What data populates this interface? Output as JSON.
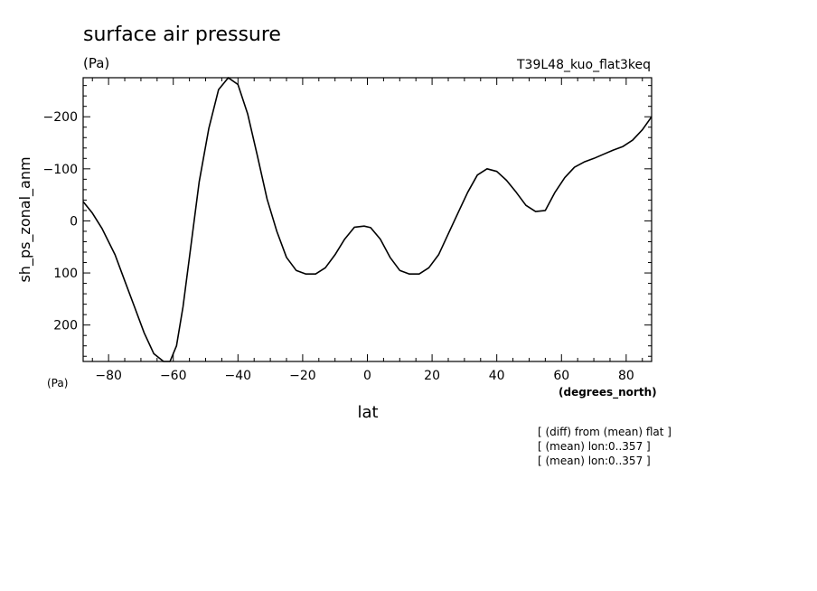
{
  "chart_data": {
    "type": "line",
    "title": "surface air pressure",
    "title_units": "(Pa)",
    "run_label": "T39L48_kuo_flat3keq",
    "ylabel": "sh_ps_zonal_anm",
    "y_units": "(Pa)",
    "xlabel": "lat",
    "x_units": "(degrees_north)",
    "notes": [
      "[ (diff) from (mean) flat ]",
      "[ (mean) lon:0..357 ]",
      "[ (mean) lon:0..357 ]"
    ],
    "xlim": [
      -87.86,
      87.86
    ],
    "ylim": [
      270,
      -275
    ],
    "y_inverted": true,
    "x_ticks": [
      -80,
      -60,
      -40,
      -20,
      0,
      20,
      40,
      60,
      80
    ],
    "x_tick_labels": [
      "−80",
      "−60",
      "−40",
      "−20",
      "0",
      "20",
      "40",
      "60",
      "80"
    ],
    "y_ticks": [
      -200,
      -100,
      0,
      100,
      200
    ],
    "y_tick_labels": [
      "−200",
      "−100",
      "0",
      "100",
      "200"
    ],
    "line_color": "#000000",
    "grid": false,
    "series": [
      {
        "x": [
          -87.86,
          -85,
          -82,
          -78,
          -75,
          -72,
          -69,
          -66,
          -63,
          -61,
          -59,
          -57,
          -55,
          -52,
          -49,
          -46,
          -43,
          -40,
          -37,
          -34,
          -31,
          -28,
          -25,
          -22,
          -19,
          -16,
          -13,
          -10,
          -7,
          -4,
          -1,
          1,
          4,
          7,
          10,
          13,
          16,
          19,
          22,
          25,
          28,
          31,
          34,
          37,
          40,
          43,
          46,
          49,
          52,
          55,
          58,
          61,
          64,
          67,
          70,
          73,
          76,
          79,
          82,
          85,
          87.86
        ],
        "y": [
          -37,
          -15,
          15,
          65,
          115,
          165,
          215,
          255,
          275,
          272,
          240,
          165,
          70,
          -75,
          -178,
          -252,
          -277,
          -262,
          -205,
          -125,
          -42,
          20,
          70,
          95,
          102,
          102,
          90,
          65,
          35,
          12,
          10,
          13,
          35,
          70,
          95,
          102,
          102,
          90,
          65,
          25,
          -15,
          -55,
          -88,
          -100,
          -95,
          -78,
          -55,
          -30,
          -18,
          -20,
          -55,
          -83,
          -103,
          -113,
          -120,
          -128,
          -136,
          -143,
          -155,
          -175,
          -200
        ]
      }
    ]
  }
}
